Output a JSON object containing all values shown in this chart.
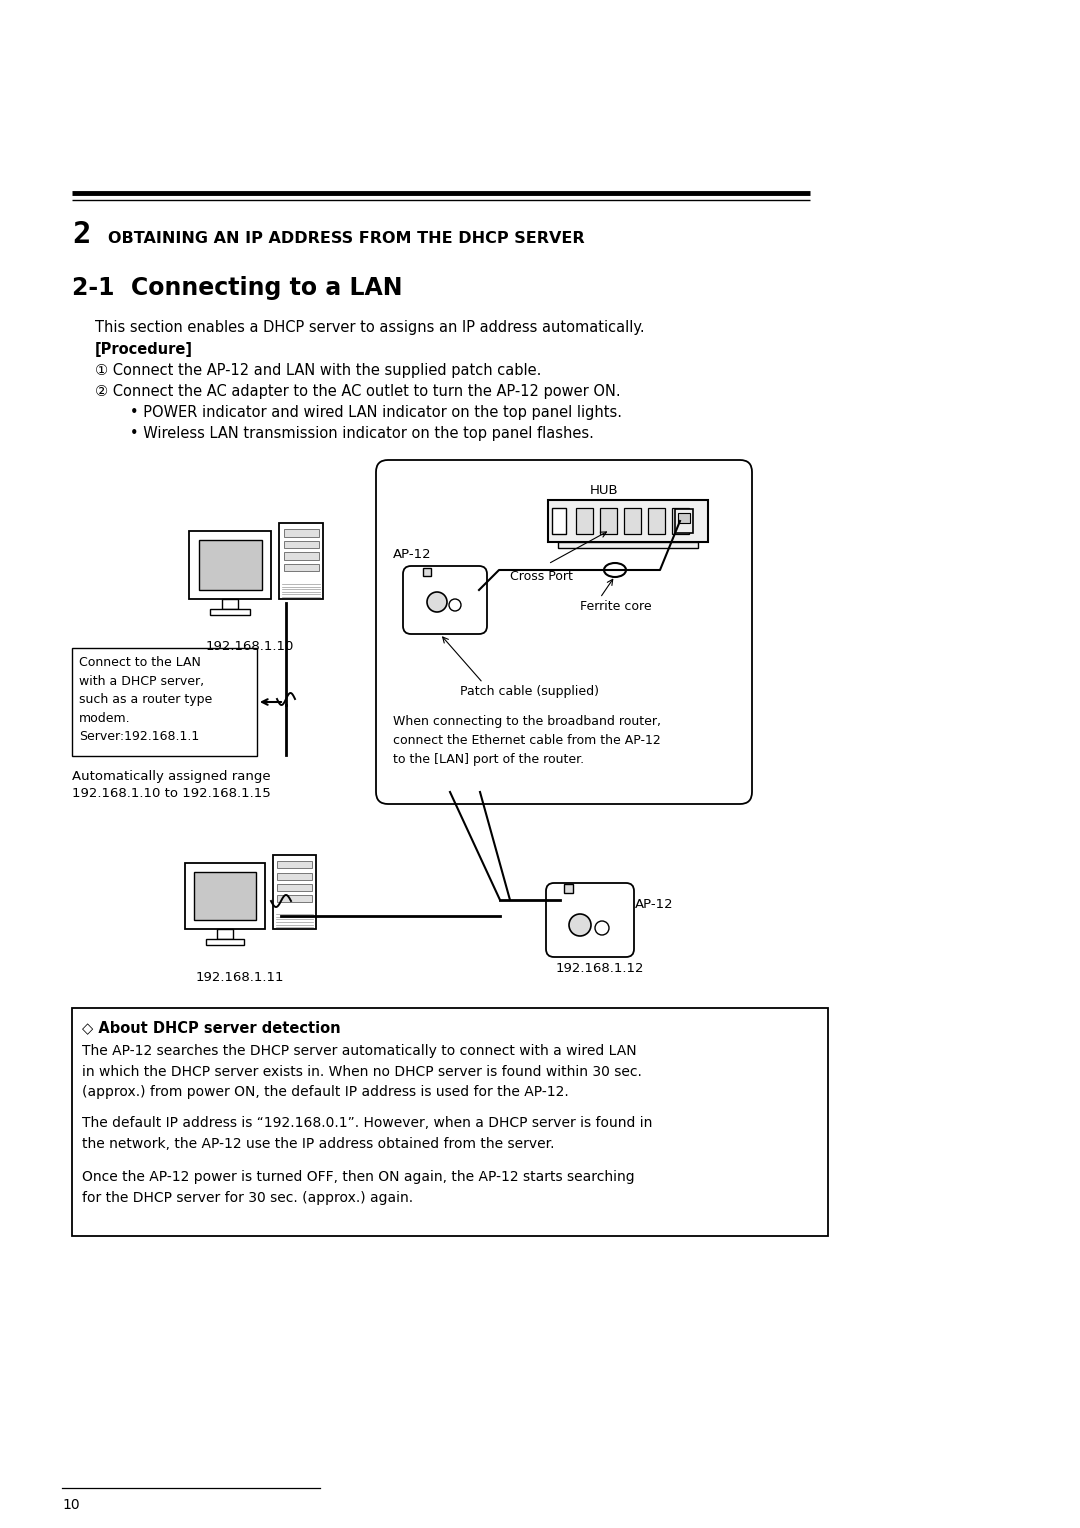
{
  "bg_color": "#ffffff",
  "page_width": 10.8,
  "page_height": 15.28,
  "chapter_number": "2",
  "chapter_title": "OBTAINING AN IP ADDRESS FROM THE DHCP SERVER",
  "section_title": "2-1  Connecting to a LAN",
  "intro_text": "This section enables a DHCP server to assigns an IP address automatically.",
  "procedure_label": "[Procedure]",
  "step1": "① Connect the AP-12 and LAN with the supplied patch cable.",
  "step2": "② Connect the AC adapter to the AC outlet to turn the AP-12 power ON.",
  "bullet1": "   • POWER indicator and wired LAN indicator on the top panel lights.",
  "bullet2": "   • Wireless LAN transmission indicator on the top panel flashes.",
  "ip_top": "192.168.1.10",
  "ip_bottom_left": "192.168.1.11",
  "ip_bottom_right": "192.168.1.12",
  "label_ap12_top": "AP-12",
  "label_ap12_bottom": "AP-12",
  "label_hub": "HUB",
  "label_cross_port": "Cross Port",
  "label_ferrite": "Ferrite core",
  "label_patch": "Patch cable (supplied)",
  "label_auto_range": "Automatically assigned range",
  "label_auto_range2": "192.168.1.10 to 192.168.1.15",
  "callout_text": "Connect to the LAN\nwith a DHCP server,\nsuch as a router type\nmodem.\nServer:192.168.1.1",
  "router_note": "When connecting to the broadband router,\nconnect the Ethernet cable from the AP-12\nto the [LAN] port of the router.",
  "dhcp_title": "◇ About DHCP server detection",
  "dhcp_para1": "The AP-12 searches the DHCP server automatically to connect with a wired LAN\nin which the DHCP server exists in. When no DHCP server is found within 30 sec.\n(approx.) from power ON, the default IP address is used for the AP-12.",
  "dhcp_para2": "The default IP address is “192.168.0.1”. However, when a DHCP server is found in\nthe network, the AP-12 use the IP address obtained from the server.",
  "dhcp_para3": "Once the AP-12 power is turned OFF, then ON again, the AP-12 starts searching\nfor the DHCP server for 30 sec. (approx.) again.",
  "page_number": "10"
}
